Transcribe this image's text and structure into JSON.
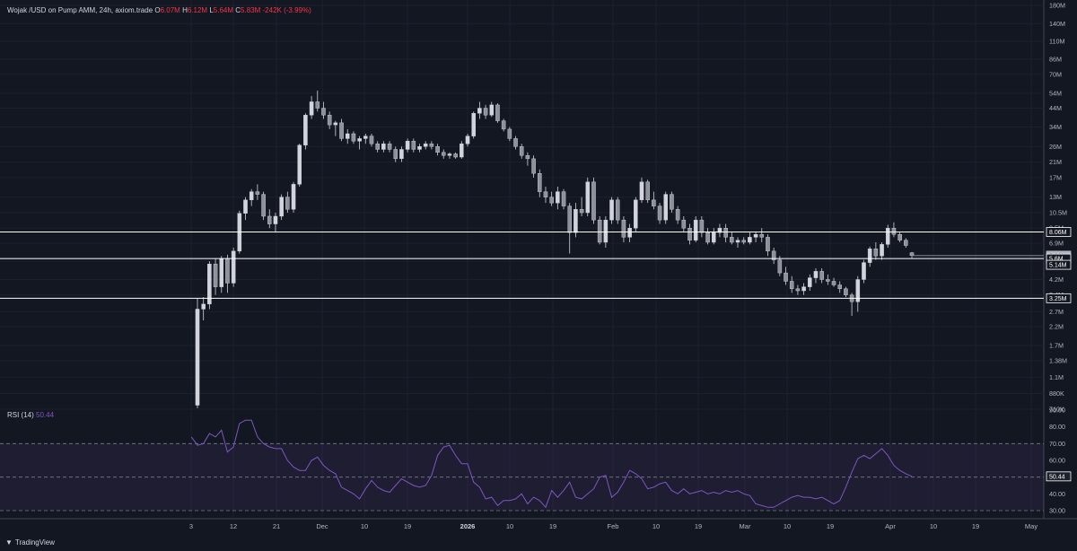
{
  "header": {
    "symbol": "Wojak /USD on Pump AMM, 24h, axiom.trade",
    "o_label": "O",
    "o_value": "6.07M",
    "h_label": "H",
    "h_value": "6.12M",
    "l_label": "L",
    "l_value": "5.64M",
    "c_label": "C",
    "c_value": "5.83M",
    "change": "-242K (-3.99%)"
  },
  "rsi": {
    "label": "RSI (14)",
    "value": "50.44"
  },
  "footer": {
    "brand": "TradingView"
  },
  "colors": {
    "background": "#131722",
    "candle": "#d1d4dc",
    "rsi": "#7e57c2",
    "down": "#f23645",
    "level": "#ffffff"
  },
  "chart_data": [
    {
      "type": "candlestick",
      "title": "Wojak /USD on Pump AMM, 24h, axiom.trade",
      "y_scale": "log",
      "ylim": [
        "710K",
        "180M"
      ],
      "y_ticks": [
        "180M",
        "140M",
        "110M",
        "86M",
        "70M",
        "54M",
        "44M",
        "34M",
        "26M",
        "21M",
        "17M",
        "13M",
        "10.5M",
        "8.5M",
        "6.9M",
        "5.4M",
        "4.2M",
        "3.4M",
        "2.7M",
        "2.2M",
        "1.7M",
        "1.38M",
        "1.1M",
        "880K",
        "710K"
      ],
      "x_ticks": [
        "3",
        "12",
        "21",
        "Dec",
        "10",
        "19",
        "2026",
        "10",
        "19",
        "Feb",
        "10",
        "19",
        "Mar",
        "10",
        "19",
        "Apr",
        "10",
        "19",
        "May"
      ],
      "horizontal_levels": [
        "8.06M",
        "5.6M",
        "3.25M"
      ],
      "price_labels": [
        "8.06M",
        "5.83M",
        "5.6M",
        "5.14M",
        "3.25M"
      ],
      "last_close": "5.83M"
    },
    {
      "type": "line",
      "title": "RSI (14)",
      "ylim": [
        30,
        90
      ],
      "y_ticks": [
        "90.00",
        "80.00",
        "70.00",
        "60.00",
        "50.00",
        "40.00",
        "30.00"
      ],
      "bands": [
        30,
        50,
        70
      ],
      "last_value": "50.44"
    }
  ]
}
